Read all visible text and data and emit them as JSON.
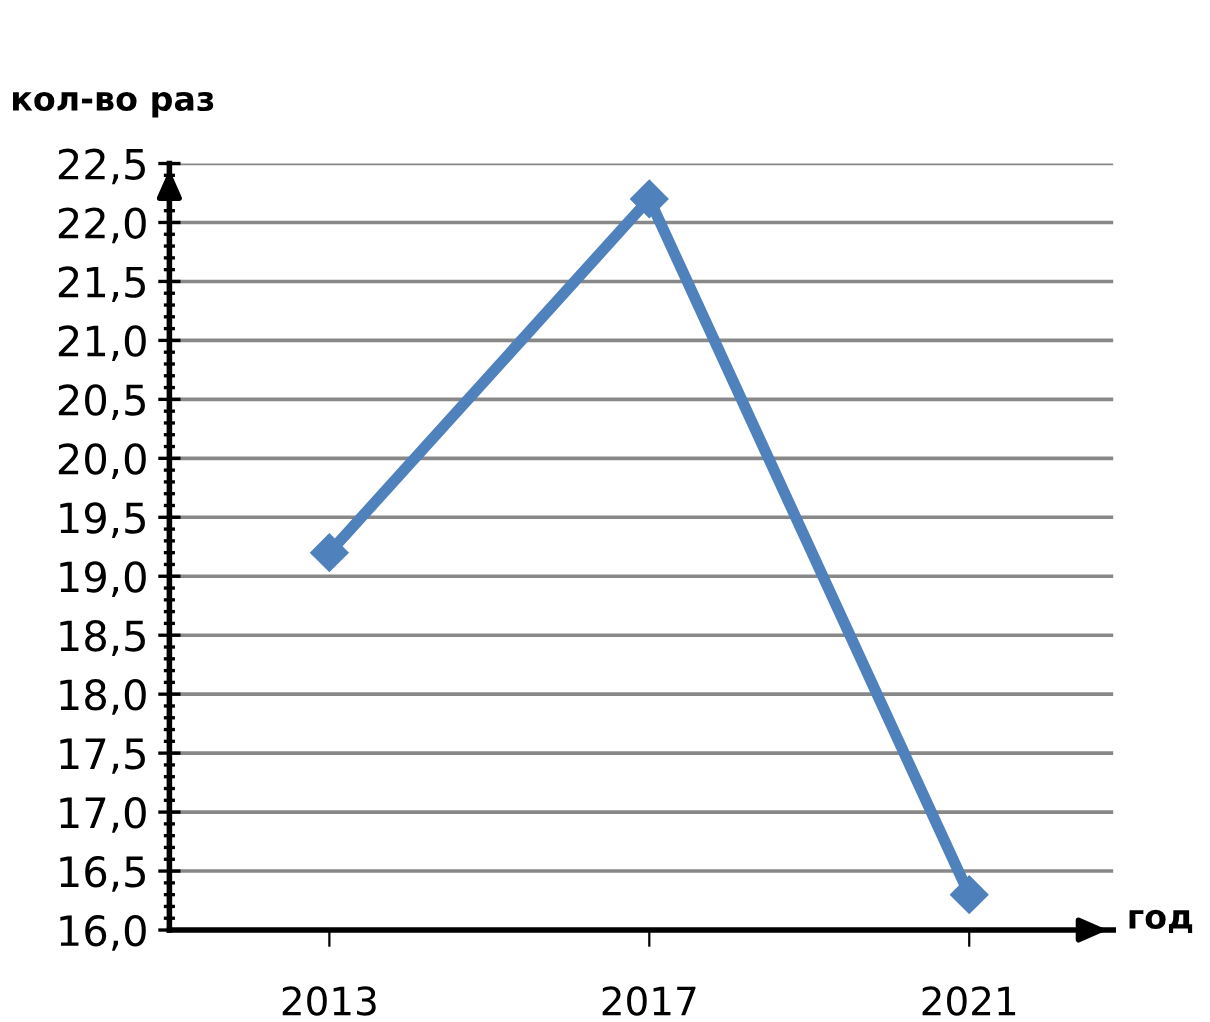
{
  "chart_data": {
    "type": "line",
    "ylabel": "кол-во раз",
    "xlabel": "год",
    "categories": [
      "2013",
      "2017",
      "2021"
    ],
    "series": [
      {
        "color": "#4f81bd",
        "values": [
          19.2,
          22.2,
          16.3
        ]
      }
    ],
    "ylim": [
      16.0,
      22.5
    ],
    "yticks": [
      {
        "value": 16.0,
        "label": "16,0"
      },
      {
        "value": 16.5,
        "label": "16,5"
      },
      {
        "value": 17.0,
        "label": "17,0"
      },
      {
        "value": 17.5,
        "label": "17,5"
      },
      {
        "value": 18.0,
        "label": "18,0"
      },
      {
        "value": 18.5,
        "label": "18,5"
      },
      {
        "value": 19.0,
        "label": "19,0"
      },
      {
        "value": 19.5,
        "label": "19,5"
      },
      {
        "value": 20.0,
        "label": "20,0"
      },
      {
        "value": 20.5,
        "label": "20,5"
      },
      {
        "value": 21.0,
        "label": "21,0"
      },
      {
        "value": 21.5,
        "label": "21,5"
      },
      {
        "value": 22.0,
        "label": "22,0"
      },
      {
        "value": 22.5,
        "label": "22,5"
      }
    ],
    "grid": "y",
    "marker": "diamond",
    "line_style": "solid",
    "legend": false
  }
}
